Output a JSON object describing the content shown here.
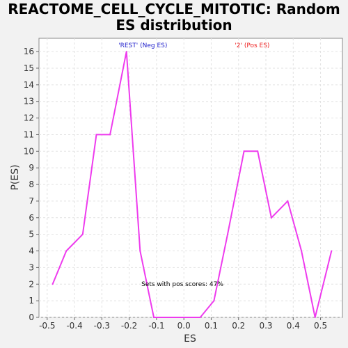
{
  "title_line1": "REACTOME_CELL_CYCLE_MITOTIC: Random",
  "title_line2": "ES distribution",
  "chart_data": {
    "type": "line",
    "xlabel": "ES",
    "ylabel": "P(ES)",
    "xlim": [
      -0.53,
      0.58
    ],
    "ylim": [
      0,
      16.8
    ],
    "x_ticks": [
      "-0.5",
      "-0.4",
      "-0.3",
      "-0.2",
      "-0.1",
      "0.0",
      "0.1",
      "0.2",
      "0.3",
      "0.4",
      "0.5"
    ],
    "x_tick_values": [
      -0.5,
      -0.4,
      -0.3,
      -0.2,
      -0.1,
      0.0,
      0.1,
      0.2,
      0.3,
      0.4,
      0.5
    ],
    "y_ticks": [
      "0",
      "1",
      "2",
      "3",
      "4",
      "5",
      "6",
      "7",
      "8",
      "9",
      "10",
      "11",
      "12",
      "13",
      "14",
      "15",
      "16"
    ],
    "y_tick_values": [
      0,
      1,
      2,
      3,
      4,
      5,
      6,
      7,
      8,
      9,
      10,
      11,
      12,
      13,
      14,
      15,
      16
    ],
    "grid": true,
    "series": [
      {
        "color": "#ee3bee",
        "x": [
          -0.48,
          -0.43,
          -0.37,
          -0.32,
          -0.27,
          -0.21,
          -0.16,
          -0.11,
          -0.05,
          0.0,
          0.06,
          0.11,
          0.16,
          0.22,
          0.27,
          0.32,
          0.38,
          0.43,
          0.48,
          0.54
        ],
        "y": [
          2,
          4,
          5,
          11,
          11,
          16,
          4,
          0,
          0,
          0,
          0,
          1,
          5,
          10,
          10,
          6,
          7,
          4,
          0,
          4
        ]
      }
    ],
    "legend": [
      {
        "label": "'REST' (Neg ES)",
        "color": "#2222cc"
      },
      {
        "label": "'2' (Pos ES)",
        "color": "#ee2222"
      }
    ],
    "annotation": "Sets with pos scores: 47%"
  }
}
